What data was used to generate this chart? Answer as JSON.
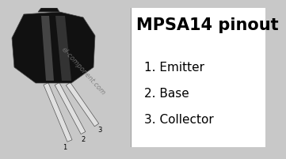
{
  "title": "MPSA14 pinout",
  "title_fontsize": 15,
  "pins": [
    {
      "number": "1.",
      "label": "Emitter"
    },
    {
      "number": "2.",
      "label": "Base"
    },
    {
      "number": "3.",
      "label": "Collector"
    }
  ],
  "pin_fontsize": 11,
  "watermark": "el-component.com",
  "watermark_fontsize": 6,
  "bg_left": "#c8c8c8",
  "bg_right": "#ffffff",
  "text_color": "#000000",
  "body_color": "#111111",
  "pin_light": "#e0e0e0",
  "pin_dark": "#555555",
  "divider_color": "#999999"
}
